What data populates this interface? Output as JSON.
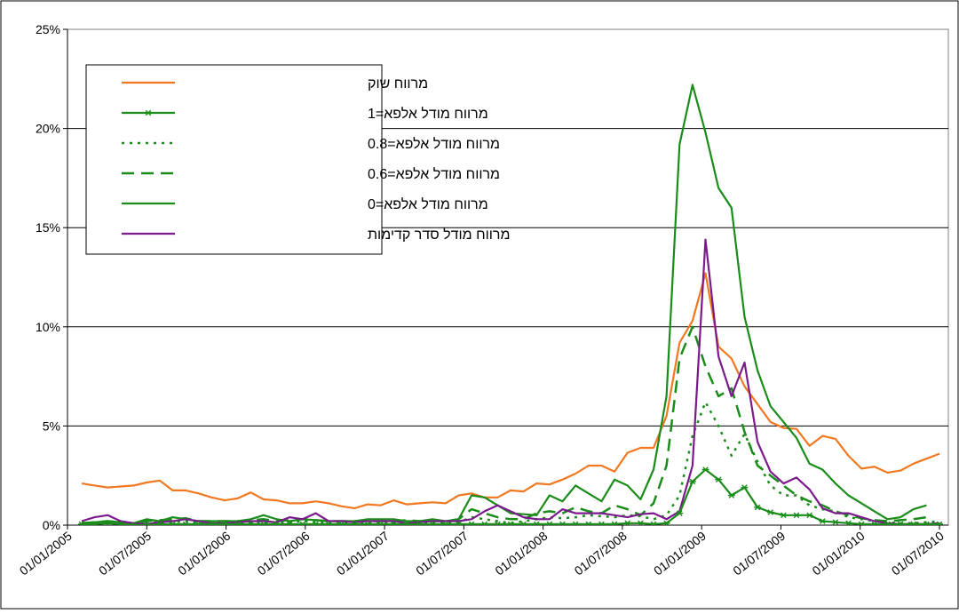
{
  "chart_data": {
    "type": "line",
    "title": "",
    "xlabel": "",
    "ylabel": "",
    "ylim": [
      0,
      25
    ],
    "y_ticks": [
      "0%",
      "5%",
      "10%",
      "15%",
      "20%",
      "25%"
    ],
    "y_tick_values": [
      0,
      5,
      10,
      15,
      20,
      25
    ],
    "x_tick_labels": [
      "01/01/2005",
      "01/07/2005",
      "01/01/2006",
      "01/07/2006",
      "01/01/2007",
      "01/07/2007",
      "01/01/2008",
      "01/07/2008",
      "01/01/2009",
      "01/07/2009",
      "01/01/2010",
      "01/07/2010"
    ],
    "x_dates_monthly_start": "01/01/2005",
    "grid": "horizontal",
    "legend_position": "top-left",
    "series": [
      {
        "name": "מרווח שוק",
        "color": "#f07820",
        "style": "solid",
        "values": [
          2.1,
          2.0,
          1.9,
          1.95,
          2.0,
          2.15,
          2.25,
          1.75,
          1.75,
          1.6,
          1.4,
          1.25,
          1.35,
          1.65,
          1.3,
          1.25,
          1.1,
          1.1,
          1.2,
          1.1,
          0.95,
          0.85,
          1.05,
          1.0,
          1.25,
          1.05,
          1.1,
          1.15,
          1.1,
          1.5,
          1.6,
          1.4,
          1.4,
          1.75,
          1.7,
          2.1,
          2.05,
          2.3,
          2.6,
          3.0,
          3.0,
          2.7,
          3.65,
          3.9,
          3.9,
          5.5,
          9.2,
          10.3,
          12.7,
          9.0,
          8.4,
          7.0,
          6.1,
          5.2,
          4.9,
          4.85,
          4.0,
          4.5,
          4.35,
          3.5,
          2.85,
          2.95,
          2.65,
          2.75,
          3.1,
          3.35,
          3.6
        ]
      },
      {
        "name": "מרווח מודל אלפא=1",
        "color": "#1a8c1a",
        "style": "star",
        "values": [
          0.05,
          0.05,
          0.1,
          0.05,
          0.0,
          0.0,
          0.05,
          0.05,
          0.05,
          0.05,
          0.05,
          0.05,
          0.05,
          0.05,
          0.05,
          0.05,
          0.05,
          0.05,
          0.05,
          0.05,
          0.05,
          0.05,
          0.05,
          0.05,
          0.05,
          0.05,
          0.05,
          0.05,
          0.05,
          0.05,
          0.05,
          0.05,
          0.05,
          0.05,
          0.05,
          0.05,
          0.05,
          0.05,
          0.05,
          0.05,
          0.05,
          0.05,
          0.1,
          0.1,
          0.05,
          0.1,
          0.6,
          2.2,
          2.8,
          2.3,
          1.5,
          1.9,
          0.9,
          0.65,
          0.5,
          0.5,
          0.5,
          0.2,
          0.15,
          0.1,
          0.05,
          0.05,
          0.05,
          0.05,
          0.05,
          0.05,
          0.05
        ]
      },
      {
        "name": "מרווח מודל אלפא=0.8",
        "color": "#1a8c1a",
        "style": "dotted",
        "values": [
          0.05,
          0.1,
          0.15,
          0.1,
          0.05,
          0.1,
          0.15,
          0.15,
          0.2,
          0.1,
          0.1,
          0.1,
          0.1,
          0.1,
          0.15,
          0.1,
          0.15,
          0.2,
          0.15,
          0.1,
          0.1,
          0.1,
          0.1,
          0.1,
          0.1,
          0.15,
          0.1,
          0.1,
          0.1,
          0.15,
          0.4,
          0.3,
          0.2,
          0.1,
          0.2,
          0.3,
          0.4,
          0.35,
          0.4,
          0.5,
          0.45,
          0.4,
          0.5,
          0.45,
          0.3,
          0.5,
          1.5,
          4.5,
          6.2,
          5.0,
          3.5,
          4.6,
          3.2,
          2.0,
          1.5,
          1.5,
          1.0,
          0.8,
          0.7,
          0.4,
          0.3,
          0.2,
          0.15,
          0.1,
          0.1,
          0.15,
          0.2
        ]
      },
      {
        "name": "מרווח מודל אלפא=0.6",
        "color": "#1a8c1a",
        "style": "dashed",
        "values": [
          0.1,
          0.15,
          0.2,
          0.15,
          0.1,
          0.2,
          0.25,
          0.3,
          0.35,
          0.2,
          0.2,
          0.2,
          0.2,
          0.25,
          0.3,
          0.2,
          0.25,
          0.3,
          0.25,
          0.2,
          0.2,
          0.2,
          0.2,
          0.2,
          0.2,
          0.25,
          0.2,
          0.2,
          0.2,
          0.3,
          0.8,
          0.6,
          0.4,
          0.3,
          0.3,
          0.6,
          0.7,
          0.6,
          0.9,
          0.7,
          0.6,
          1.0,
          0.8,
          0.5,
          1.1,
          3.0,
          8.4,
          10.0,
          8.0,
          6.5,
          6.9,
          4.7,
          3.0,
          2.5,
          2.0,
          1.5,
          1.2,
          1.0,
          0.7,
          0.5,
          0.35,
          0.25,
          0.2,
          0.25,
          0.3,
          0.4
        ]
      },
      {
        "name": "מרווח מודל אלפא=0",
        "color": "#1a8c1a",
        "style": "solid",
        "values": [
          0.1,
          0.15,
          0.2,
          0.15,
          0.1,
          0.3,
          0.2,
          0.4,
          0.3,
          0.2,
          0.2,
          0.2,
          0.2,
          0.3,
          0.5,
          0.3,
          0.2,
          0.3,
          0.25,
          0.2,
          0.2,
          0.2,
          0.3,
          0.3,
          0.3,
          0.2,
          0.2,
          0.3,
          0.2,
          0.3,
          1.5,
          1.4,
          1.0,
          0.6,
          0.55,
          0.5,
          1.5,
          1.2,
          2.0,
          1.6,
          1.2,
          2.3,
          2.0,
          1.3,
          2.8,
          6.5,
          19.2,
          22.2,
          19.8,
          17.0,
          16.0,
          10.5,
          7.8,
          6.0,
          5.2,
          4.4,
          3.1,
          2.8,
          2.1,
          1.5,
          1.1,
          0.7,
          0.3,
          0.4,
          0.8,
          1.0
        ]
      },
      {
        "name": "מרווח מודל סדר קדימות",
        "color": "#7b1a8c",
        "style": "solid",
        "values": [
          0.2,
          0.4,
          0.5,
          0.2,
          0.1,
          0.05,
          0.15,
          0.2,
          0.3,
          0.2,
          0.1,
          0.1,
          0.15,
          0.2,
          0.2,
          0.15,
          0.4,
          0.3,
          0.6,
          0.2,
          0.2,
          0.15,
          0.2,
          0.2,
          0.2,
          0.1,
          0.15,
          0.2,
          0.2,
          0.2,
          0.3,
          0.7,
          1.0,
          0.7,
          0.4,
          0.3,
          0.3,
          0.8,
          0.6,
          0.6,
          0.6,
          0.5,
          0.4,
          0.55,
          0.6,
          0.3,
          0.7,
          3.0,
          14.4,
          8.5,
          6.5,
          8.2,
          4.2,
          2.7,
          2.1,
          2.4,
          1.8,
          0.85,
          0.6,
          0.6,
          0.4,
          0.2,
          0.1,
          0.05,
          0.05,
          0.05,
          0.1
        ]
      }
    ]
  }
}
